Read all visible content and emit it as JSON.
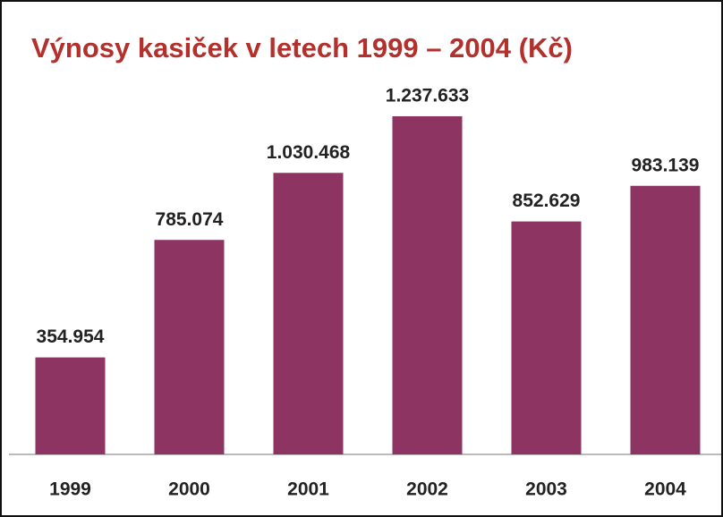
{
  "chart_data": {
    "type": "bar",
    "title": "Výnosy kasiček v letech 1999 – 2004 (Kč)",
    "categories": [
      "1999",
      "2000",
      "2001",
      "2002",
      "2003",
      "2004"
    ],
    "values": [
      354954,
      785074,
      1030468,
      1237633,
      852629,
      983139
    ],
    "value_labels": [
      "354.954",
      "785.074",
      "1.030.468",
      "1.237.633",
      "852.629",
      "983.139"
    ],
    "color": "#8e3462"
  }
}
